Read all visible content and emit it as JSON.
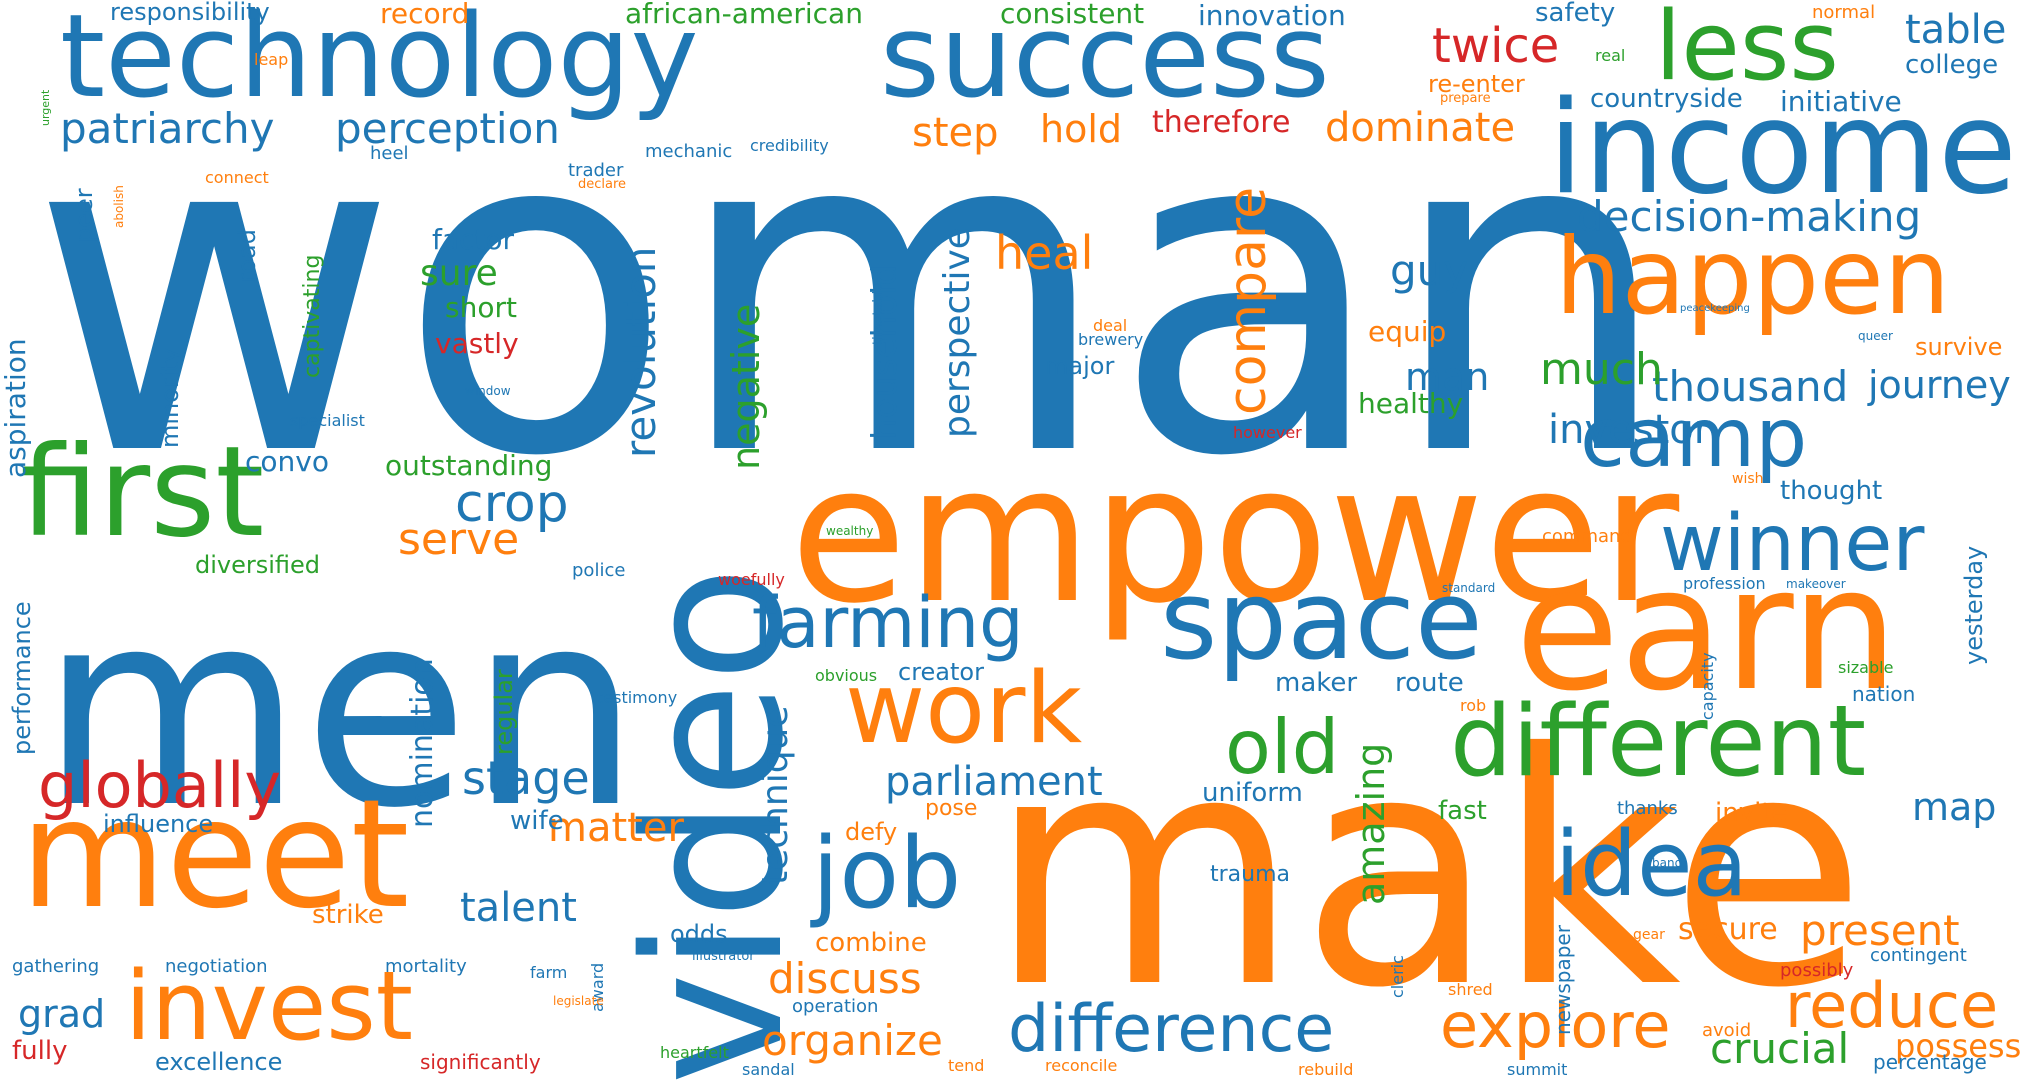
{
  "palette": {
    "blue": "#1f77b4",
    "orange": "#ff7f0e",
    "green": "#2ca02c",
    "red": "#d62728"
  },
  "words": [
    {
      "text": "woman",
      "color": "blue"
    },
    {
      "text": "make",
      "color": "orange"
    },
    {
      "text": "men",
      "color": "blue"
    },
    {
      "text": "empower",
      "color": "orange"
    },
    {
      "text": "video",
      "color": "blue"
    },
    {
      "text": "technology",
      "color": "blue"
    },
    {
      "text": "success",
      "color": "blue"
    },
    {
      "text": "earn",
      "color": "orange"
    },
    {
      "text": "income",
      "color": "blue"
    },
    {
      "text": "meet",
      "color": "orange"
    },
    {
      "text": "happen",
      "color": "orange"
    },
    {
      "text": "first",
      "color": "green"
    },
    {
      "text": "space",
      "color": "blue"
    },
    {
      "text": "less",
      "color": "green"
    },
    {
      "text": "work",
      "color": "orange"
    },
    {
      "text": "different",
      "color": "green"
    },
    {
      "text": "invest",
      "color": "orange"
    },
    {
      "text": "idea",
      "color": "blue"
    },
    {
      "text": "job",
      "color": "blue"
    },
    {
      "text": "camp",
      "color": "blue"
    },
    {
      "text": "winner",
      "color": "blue"
    },
    {
      "text": "farming",
      "color": "blue"
    },
    {
      "text": "old",
      "color": "green"
    },
    {
      "text": "difference",
      "color": "blue"
    },
    {
      "text": "explore",
      "color": "orange"
    },
    {
      "text": "reduce",
      "color": "orange"
    },
    {
      "text": "globally",
      "color": "red"
    },
    {
      "text": "patriarchy",
      "color": "blue"
    },
    {
      "text": "perception",
      "color": "blue"
    },
    {
      "text": "compare",
      "color": "orange"
    },
    {
      "text": "twice",
      "color": "red"
    },
    {
      "text": "crop",
      "color": "blue"
    },
    {
      "text": "table",
      "color": "blue"
    },
    {
      "text": "decision-making",
      "color": "blue"
    },
    {
      "text": "dominate",
      "color": "orange"
    },
    {
      "text": "thousand",
      "color": "blue"
    },
    {
      "text": "journey",
      "color": "blue"
    },
    {
      "text": "investor",
      "color": "blue"
    },
    {
      "text": "much",
      "color": "green"
    },
    {
      "text": "heal",
      "color": "orange"
    },
    {
      "text": "guy",
      "color": "blue"
    },
    {
      "text": "man",
      "color": "blue"
    },
    {
      "text": "stage",
      "color": "blue"
    },
    {
      "text": "parliament",
      "color": "blue"
    },
    {
      "text": "matter",
      "color": "orange"
    },
    {
      "text": "talent",
      "color": "blue"
    },
    {
      "text": "discuss",
      "color": "orange"
    },
    {
      "text": "organize",
      "color": "orange"
    },
    {
      "text": "crucial",
      "color": "green"
    },
    {
      "text": "present",
      "color": "orange"
    },
    {
      "text": "secure",
      "color": "orange"
    },
    {
      "text": "possess",
      "color": "orange"
    },
    {
      "text": "map",
      "color": "blue"
    },
    {
      "text": "grad",
      "color": "blue"
    },
    {
      "text": "serve",
      "color": "orange"
    },
    {
      "text": "step",
      "color": "orange"
    },
    {
      "text": "hold",
      "color": "orange"
    },
    {
      "text": "therefore",
      "color": "red"
    },
    {
      "text": "sure",
      "color": "green"
    },
    {
      "text": "factor",
      "color": "blue"
    },
    {
      "text": "short",
      "color": "green"
    },
    {
      "text": "vastly",
      "color": "red"
    },
    {
      "text": "responsibility",
      "color": "blue"
    },
    {
      "text": "record",
      "color": "orange"
    },
    {
      "text": "african-american",
      "color": "green"
    },
    {
      "text": "consistent",
      "color": "green"
    },
    {
      "text": "innovation",
      "color": "blue"
    },
    {
      "text": "safety",
      "color": "blue"
    },
    {
      "text": "normal",
      "color": "orange"
    },
    {
      "text": "college",
      "color": "blue"
    },
    {
      "text": "initiative",
      "color": "blue"
    },
    {
      "text": "countryside",
      "color": "blue"
    },
    {
      "text": "re-enter",
      "color": "orange"
    },
    {
      "text": "real",
      "color": "green"
    },
    {
      "text": "prepare",
      "color": "orange"
    },
    {
      "text": "leap",
      "color": "orange"
    },
    {
      "text": "urgent",
      "color": "green"
    },
    {
      "text": "heel",
      "color": "blue"
    },
    {
      "text": "mechanic",
      "color": "blue"
    },
    {
      "text": "credibility",
      "color": "blue"
    },
    {
      "text": "trader",
      "color": "blue"
    },
    {
      "text": "declare",
      "color": "orange"
    },
    {
      "text": "connect",
      "color": "orange"
    },
    {
      "text": "abolish",
      "color": "orange"
    },
    {
      "text": "peer",
      "color": "blue"
    },
    {
      "text": "road",
      "color": "blue"
    },
    {
      "text": "captivating",
      "color": "green"
    },
    {
      "text": "minority",
      "color": "blue"
    },
    {
      "text": "aspiration",
      "color": "blue"
    },
    {
      "text": "specialist",
      "color": "blue"
    },
    {
      "text": "window",
      "color": "blue"
    },
    {
      "text": "convo",
      "color": "blue"
    },
    {
      "text": "outstanding",
      "color": "green"
    },
    {
      "text": "diversified",
      "color": "green"
    },
    {
      "text": "revolution",
      "color": "blue"
    },
    {
      "text": "household",
      "color": "blue"
    },
    {
      "text": "negative",
      "color": "green"
    },
    {
      "text": "perspective",
      "color": "blue"
    },
    {
      "text": "timetable",
      "color": "blue"
    },
    {
      "text": "deal",
      "color": "orange"
    },
    {
      "text": "brewery",
      "color": "blue"
    },
    {
      "text": "major",
      "color": "blue"
    },
    {
      "text": "equip",
      "color": "orange"
    },
    {
      "text": "healthy",
      "color": "green"
    },
    {
      "text": "however",
      "color": "red"
    },
    {
      "text": "peacekeeping",
      "color": "blue"
    },
    {
      "text": "queer",
      "color": "blue"
    },
    {
      "text": "survive",
      "color": "orange"
    },
    {
      "text": "thought",
      "color": "blue"
    },
    {
      "text": "wish",
      "color": "orange"
    },
    {
      "text": "command",
      "color": "orange"
    },
    {
      "text": "wealthy",
      "color": "green"
    },
    {
      "text": "police",
      "color": "blue"
    },
    {
      "text": "woefully",
      "color": "red"
    },
    {
      "text": "standard",
      "color": "blue"
    },
    {
      "text": "profession",
      "color": "blue"
    },
    {
      "text": "makeover",
      "color": "blue"
    },
    {
      "text": "yesterday",
      "color": "blue"
    },
    {
      "text": "performance",
      "color": "blue"
    },
    {
      "text": "regular",
      "color": "green"
    },
    {
      "text": "nomination",
      "color": "blue"
    },
    {
      "text": "wife",
      "color": "blue"
    },
    {
      "text": "influence",
      "color": "blue"
    },
    {
      "text": "technique",
      "color": "blue"
    },
    {
      "text": "creator",
      "color": "blue"
    },
    {
      "text": "obvious",
      "color": "green"
    },
    {
      "text": "testimony",
      "color": "blue"
    },
    {
      "text": "maker",
      "color": "blue"
    },
    {
      "text": "route",
      "color": "blue"
    },
    {
      "text": "capacity",
      "color": "blue"
    },
    {
      "text": "sizable",
      "color": "green"
    },
    {
      "text": "nation",
      "color": "blue"
    },
    {
      "text": "rob",
      "color": "orange"
    },
    {
      "text": "uniform",
      "color": "blue"
    },
    {
      "text": "amazing",
      "color": "green"
    },
    {
      "text": "fast",
      "color": "green"
    },
    {
      "text": "thanks",
      "color": "blue"
    },
    {
      "text": "invite",
      "color": "orange"
    },
    {
      "text": "defy",
      "color": "orange"
    },
    {
      "text": "pose",
      "color": "orange"
    },
    {
      "text": "band",
      "color": "blue"
    },
    {
      "text": "strike",
      "color": "orange"
    },
    {
      "text": "trauma",
      "color": "blue"
    },
    {
      "text": "combine",
      "color": "orange"
    },
    {
      "text": "odds",
      "color": "blue"
    },
    {
      "text": "illustrator",
      "color": "blue"
    },
    {
      "text": "cleric",
      "color": "blue"
    },
    {
      "text": "newspaper",
      "color": "blue"
    },
    {
      "text": "gear",
      "color": "orange"
    },
    {
      "text": "contingent",
      "color": "blue"
    },
    {
      "text": "possibly",
      "color": "red"
    },
    {
      "text": "gathering",
      "color": "blue"
    },
    {
      "text": "negotiation",
      "color": "blue"
    },
    {
      "text": "mortality",
      "color": "blue"
    },
    {
      "text": "farm",
      "color": "blue"
    },
    {
      "text": "award",
      "color": "blue"
    },
    {
      "text": "legislate",
      "color": "orange"
    },
    {
      "text": "operation",
      "color": "blue"
    },
    {
      "text": "shred",
      "color": "orange"
    },
    {
      "text": "fully",
      "color": "red"
    },
    {
      "text": "excellence",
      "color": "blue"
    },
    {
      "text": "significantly",
      "color": "red"
    },
    {
      "text": "heartfelt",
      "color": "green"
    },
    {
      "text": "sandal",
      "color": "blue"
    },
    {
      "text": "tend",
      "color": "orange"
    },
    {
      "text": "reconcile",
      "color": "orange"
    },
    {
      "text": "rebuild",
      "color": "orange"
    },
    {
      "text": "summit",
      "color": "blue"
    },
    {
      "text": "avoid",
      "color": "orange"
    },
    {
      "text": "percentage",
      "color": "blue"
    }
  ]
}
